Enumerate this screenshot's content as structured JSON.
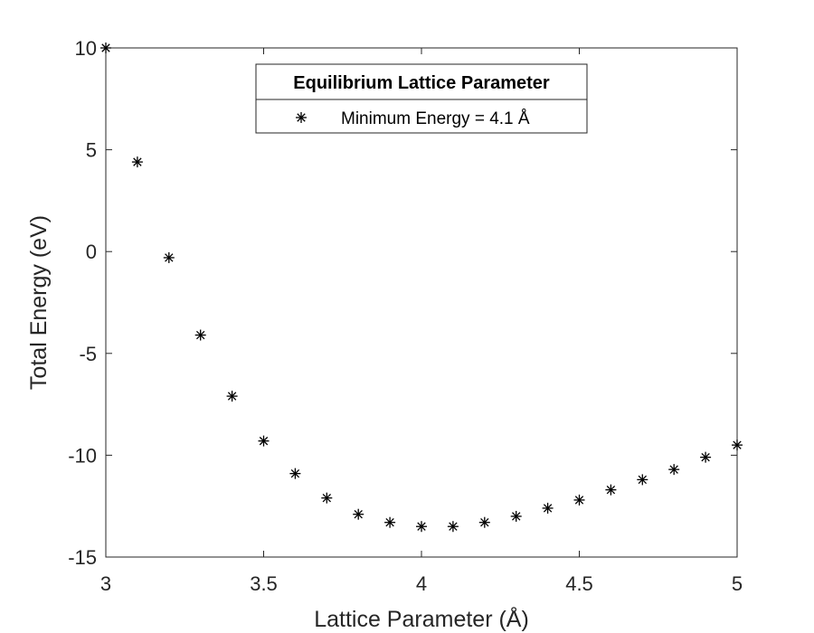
{
  "chart_data": {
    "type": "scatter",
    "title": "",
    "xlabel": "Lattice Parameter (Å)",
    "ylabel": "Total Energy (eV)",
    "xlim": [
      3,
      5
    ],
    "ylim": [
      -15,
      10
    ],
    "xticks": [
      3,
      3.5,
      4,
      4.5,
      5
    ],
    "xtick_labels": [
      "3",
      "3.5",
      "4",
      "4.5",
      "5"
    ],
    "yticks": [
      -15,
      -10,
      -5,
      0,
      5,
      10
    ],
    "ytick_labels": [
      "-15",
      "-10",
      "-5",
      "0",
      "5",
      "10"
    ],
    "grid": false,
    "legend": {
      "title": "Equilibrium Lattice Parameter",
      "placement": "top-center"
    },
    "series": [
      {
        "name": "Minimum Energy = 4.1 Å",
        "marker": "asterisk",
        "color": "#000000",
        "x": [
          3.0,
          3.1,
          3.2,
          3.3,
          3.4,
          3.5,
          3.6,
          3.7,
          3.8,
          3.9,
          4.0,
          4.1,
          4.2,
          4.3,
          4.4,
          4.5,
          4.6,
          4.7,
          4.8,
          4.9,
          5.0
        ],
        "y": [
          10.0,
          4.4,
          -0.3,
          -4.1,
          -7.1,
          -9.3,
          -10.9,
          -12.1,
          -12.9,
          -13.3,
          -13.5,
          -13.5,
          -13.3,
          -13.0,
          -12.6,
          -12.2,
          -11.7,
          -11.2,
          -10.7,
          -10.1,
          -9.5
        ]
      }
    ]
  }
}
